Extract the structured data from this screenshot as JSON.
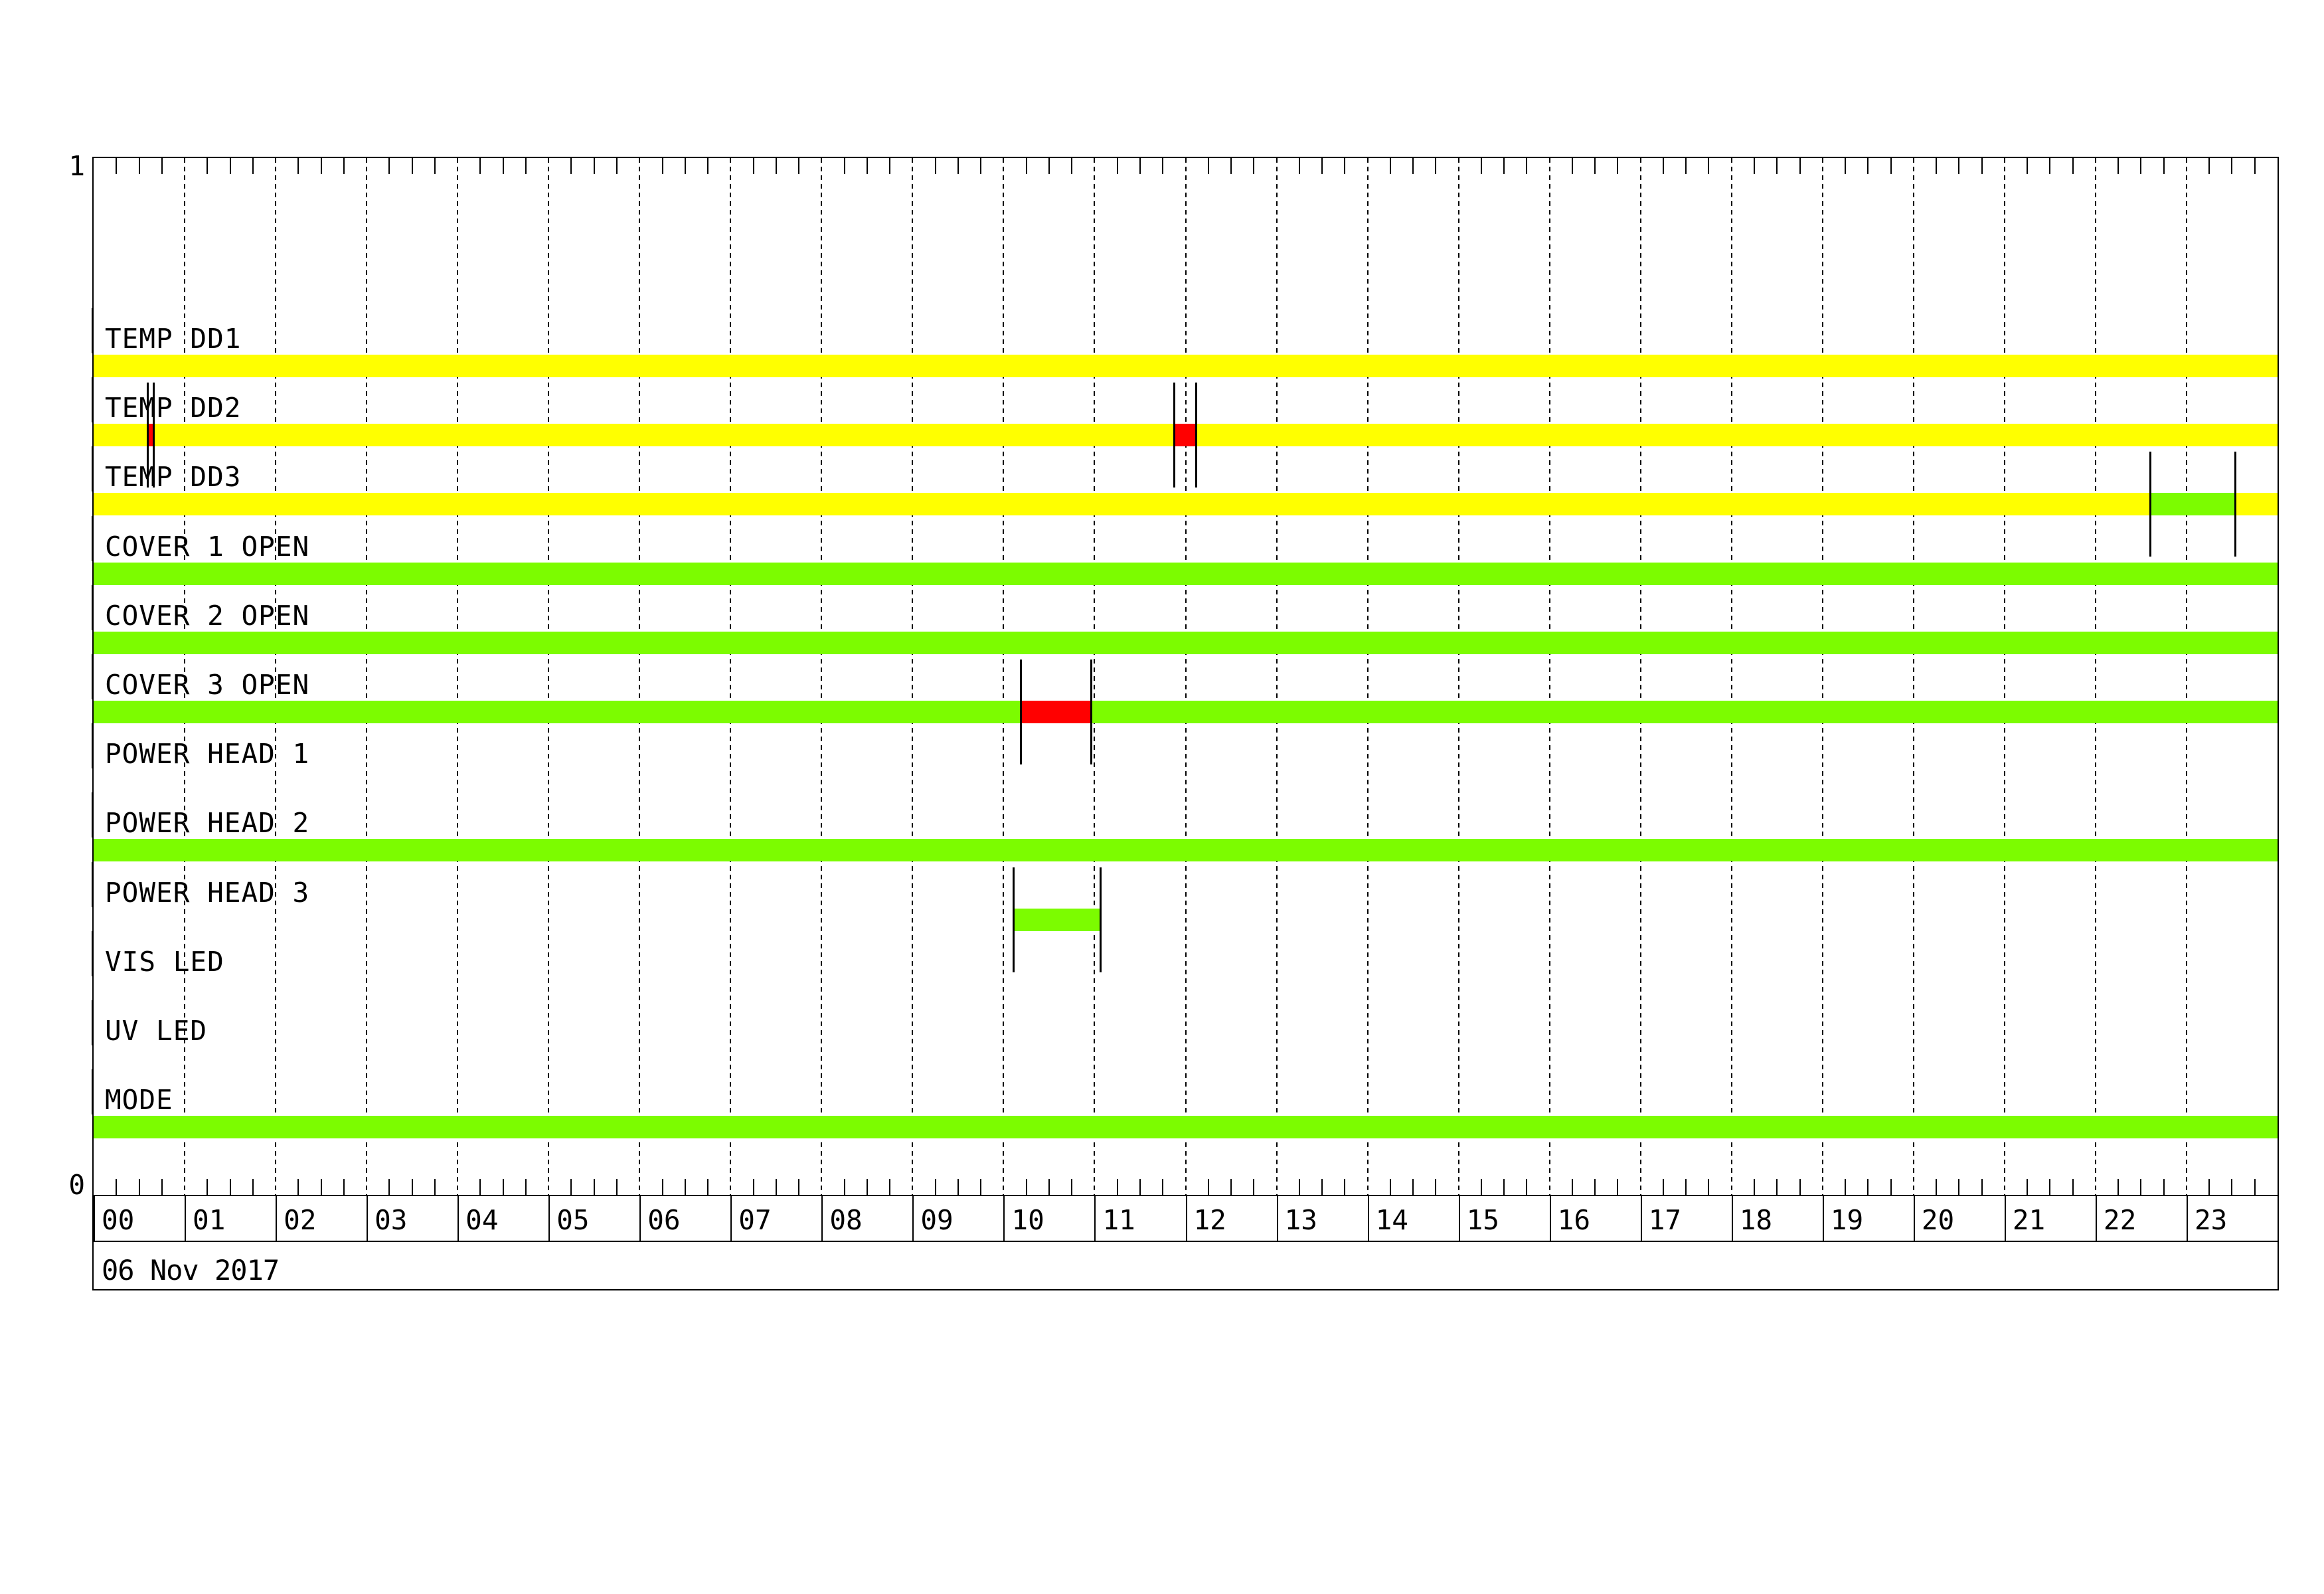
{
  "colors": {
    "yellow": "#FFFF00",
    "green": "#7CFC00",
    "red": "#FF0000",
    "line": "#000000",
    "background": "#FFFFFF"
  },
  "chart_data": {
    "type": "timeline",
    "title": "",
    "date": "06 Nov 2017",
    "x_axis": {
      "unit": "hour",
      "min": 0,
      "max": 24,
      "minor_tick_minutes": 15,
      "tick_labels": [
        "00",
        "01",
        "02",
        "03",
        "04",
        "05",
        "06",
        "07",
        "08",
        "09",
        "10",
        "11",
        "12",
        "13",
        "14",
        "15",
        "16",
        "17",
        "18",
        "19",
        "20",
        "21",
        "22",
        "23"
      ]
    },
    "y_axis": {
      "top": "1",
      "bottom": "0"
    },
    "rows": [
      {
        "label": "TEMP DD1",
        "segments": [
          {
            "color": "yellow",
            "start": 0,
            "end": 24
          }
        ],
        "event_markers": []
      },
      {
        "label": "TEMP DD2",
        "segments": [
          {
            "color": "yellow",
            "start": 0,
            "end": 0.59
          },
          {
            "color": "red",
            "start": 0.59,
            "end": 0.66
          },
          {
            "color": "yellow",
            "start": 0.66,
            "end": 11.87
          },
          {
            "color": "red",
            "start": 11.87,
            "end": 12.11
          },
          {
            "color": "yellow",
            "start": 12.11,
            "end": 24
          }
        ],
        "event_markers": [
          0.59,
          0.66,
          11.87,
          12.11
        ]
      },
      {
        "label": "TEMP DD3",
        "segments": [
          {
            "color": "yellow",
            "start": 0,
            "end": 22.6
          },
          {
            "color": "green",
            "start": 22.6,
            "end": 23.53
          },
          {
            "color": "yellow",
            "start": 23.53,
            "end": 24
          }
        ],
        "event_markers": [
          22.6,
          23.53
        ]
      },
      {
        "label": "COVER 1 OPEN",
        "segments": [
          {
            "color": "green",
            "start": 0,
            "end": 24
          }
        ],
        "event_markers": []
      },
      {
        "label": "COVER 2 OPEN",
        "segments": [
          {
            "color": "green",
            "start": 0,
            "end": 24
          }
        ],
        "event_markers": []
      },
      {
        "label": "COVER 3 OPEN",
        "segments": [
          {
            "color": "green",
            "start": 0,
            "end": 10.19
          },
          {
            "color": "red",
            "start": 10.19,
            "end": 10.96
          },
          {
            "color": "green",
            "start": 10.96,
            "end": 24
          }
        ],
        "event_markers": [
          10.19,
          10.96
        ]
      },
      {
        "label": "POWER HEAD 1",
        "segments": [],
        "event_markers": []
      },
      {
        "label": "POWER HEAD 2",
        "segments": [
          {
            "color": "green",
            "start": 0,
            "end": 24
          }
        ],
        "event_markers": []
      },
      {
        "label": "POWER HEAD 3",
        "segments": [
          {
            "color": "green",
            "start": 10.11,
            "end": 11.06
          }
        ],
        "event_markers": [
          10.11,
          11.06
        ]
      },
      {
        "label": "VIS LED",
        "segments": [],
        "event_markers": []
      },
      {
        "label": "UV LED",
        "segments": [],
        "event_markers": []
      },
      {
        "label": "MODE",
        "segments": [
          {
            "color": "green",
            "start": 0,
            "end": 24
          }
        ],
        "event_markers": []
      }
    ]
  }
}
